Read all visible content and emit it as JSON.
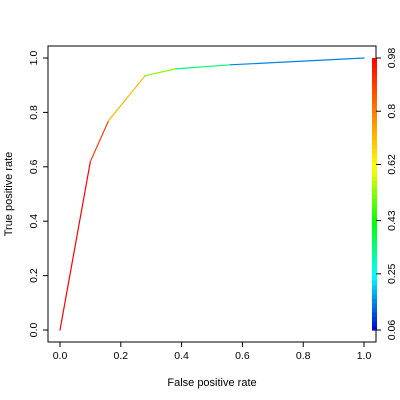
{
  "chart_data": {
    "type": "line",
    "title": "",
    "xlabel": "False positive rate",
    "ylabel": "True positive rate",
    "xlim": [
      0,
      1
    ],
    "ylim": [
      0,
      1
    ],
    "grid": false,
    "x_ticks": [
      0.0,
      0.2,
      0.4,
      0.6,
      0.8,
      1.0
    ],
    "x_tick_labels": [
      "0.0",
      "0.2",
      "0.4",
      "0.6",
      "0.8",
      "1.0"
    ],
    "y_ticks": [
      0.0,
      0.2,
      0.4,
      0.6,
      0.8,
      1.0
    ],
    "y_tick_labels": [
      "0.0",
      "0.2",
      "0.4",
      "0.6",
      "0.8",
      "1.0"
    ],
    "series": [
      {
        "points": [
          {
            "x": 0.0,
            "y": 0.0,
            "cutoff": 0.98
          },
          {
            "x": 0.1,
            "y": 0.62,
            "cutoff": 0.98
          },
          {
            "x": 0.16,
            "y": 0.77,
            "cutoff": 0.8
          },
          {
            "x": 0.28,
            "y": 0.935,
            "cutoff": 0.62
          },
          {
            "x": 0.38,
            "y": 0.96,
            "cutoff": 0.43
          },
          {
            "x": 0.56,
            "y": 0.975,
            "cutoff": 0.25
          },
          {
            "x": 1.0,
            "y": 1.0,
            "cutoff": 0.06
          }
        ]
      }
    ],
    "colorbar": {
      "position": "right",
      "range": [
        0.06,
        0.98
      ],
      "tick_labels": [
        "0.06",
        "0.25",
        "0.43",
        "0.62",
        "0.8",
        "0.98"
      ],
      "tick_values": [
        0.06,
        0.25,
        0.43,
        0.62,
        0.8,
        0.98
      ],
      "colors": [
        "#0000cc",
        "#00ffff",
        "#00ff00",
        "#ffff00",
        "#ff8000",
        "#ff0000"
      ]
    }
  }
}
